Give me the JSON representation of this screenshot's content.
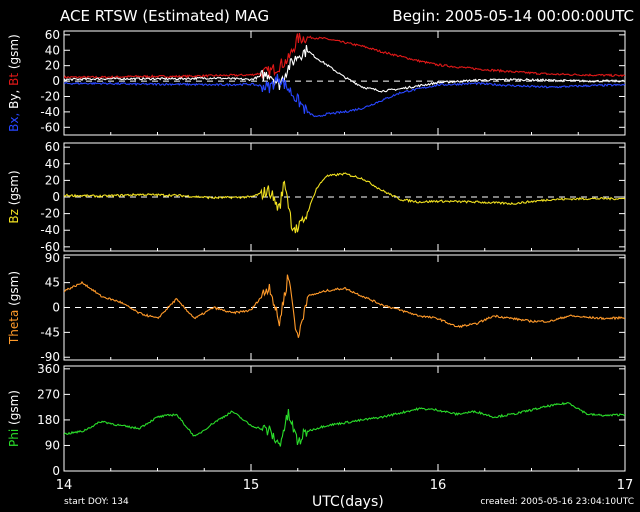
{
  "header": {
    "title": "ACE RTSW (Estimated) MAG",
    "begin": "Begin: 2005-05-14 00:00:00UTC"
  },
  "footer": {
    "start_doy": "start DOY:  134",
    "created": "created: 2005-05-16 23:04:10UTC"
  },
  "colors": {
    "background": "#000000",
    "axes": "#ffffff",
    "bx": "#2846ff",
    "by": "#ffffff",
    "bt": "#e01818",
    "bz": "#f0e020",
    "theta": "#ff9a2a",
    "phi": "#2adc2a"
  },
  "chart_data": {
    "type": "line",
    "xlabel": "UTC(days)",
    "xlim": [
      14,
      17
    ],
    "xticks": [
      14,
      15,
      16,
      17
    ],
    "panels": [
      {
        "id": "b",
        "ylabel_parts": [
          {
            "text": "Bx,",
            "color": "#2846ff"
          },
          {
            "text": " By,",
            "color": "#ffffff"
          },
          {
            "text": " Bt",
            "color": "#e01818"
          },
          {
            "text": " (gsm)",
            "color": "#ffffff"
          }
        ],
        "ylim": [
          -70,
          65
        ],
        "yticks": [
          -60,
          -40,
          -20,
          0,
          20,
          40,
          60
        ],
        "zero_line": true,
        "series": [
          {
            "key": "Bt",
            "color": "#e01818",
            "x": [
              14.0,
              14.2,
              14.4,
              14.6,
              14.8,
              15.0,
              15.1,
              15.15,
              15.2,
              15.25,
              15.3,
              15.4,
              15.5,
              15.6,
              15.7,
              15.8,
              15.9,
              16.0,
              16.2,
              16.4,
              16.6,
              16.8,
              17.0
            ],
            "y": [
              5,
              5,
              6,
              6,
              7,
              8,
              12,
              20,
              28,
              55,
              57,
              55,
              50,
              45,
              38,
              32,
              26,
              21,
              16,
              12,
              9,
              8,
              7
            ]
          },
          {
            "key": "By",
            "color": "#ffffff",
            "x": [
              14.0,
              14.2,
              14.4,
              14.6,
              14.8,
              15.0,
              15.1,
              15.15,
              15.2,
              15.25,
              15.3,
              15.35,
              15.4,
              15.5,
              15.6,
              15.7,
              15.8,
              15.9,
              16.0,
              16.2,
              16.4,
              16.6,
              16.8,
              17.0
            ],
            "y": [
              2,
              3,
              3,
              3,
              4,
              2,
              10,
              -5,
              18,
              33,
              40,
              30,
              22,
              5,
              -8,
              -13,
              -10,
              -6,
              -2,
              1,
              2,
              1,
              0,
              0
            ]
          },
          {
            "key": "Bx",
            "color": "#2846ff",
            "x": [
              14.0,
              14.2,
              14.4,
              14.6,
              14.8,
              15.0,
              15.1,
              15.15,
              15.2,
              15.25,
              15.3,
              15.35,
              15.4,
              15.5,
              15.6,
              15.7,
              15.8,
              15.9,
              16.0,
              16.2,
              16.4,
              16.6,
              16.8,
              17.0
            ],
            "y": [
              -3,
              -3,
              -4,
              -4,
              -5,
              -4,
              -8,
              5,
              -10,
              -25,
              -40,
              -47,
              -43,
              -40,
              -35,
              -25,
              -15,
              -10,
              -5,
              -3,
              -6,
              -8,
              -6,
              -5
            ]
          }
        ]
      },
      {
        "id": "bz",
        "ylabel_parts": [
          {
            "text": "Bz",
            "color": "#f0e020"
          },
          {
            "text": " (gsm)",
            "color": "#ffffff"
          }
        ],
        "ylim": [
          -65,
          65
        ],
        "yticks": [
          -60,
          -40,
          -20,
          0,
          20,
          40,
          60
        ],
        "zero_line": true,
        "series": [
          {
            "key": "Bz",
            "color": "#f0e020",
            "x": [
              14.0,
              14.2,
              14.4,
              14.6,
              14.8,
              15.0,
              15.1,
              15.15,
              15.18,
              15.22,
              15.25,
              15.3,
              15.35,
              15.4,
              15.5,
              15.6,
              15.7,
              15.8,
              15.9,
              16.0,
              16.2,
              16.4,
              16.6,
              16.8,
              17.0
            ],
            "y": [
              2,
              1,
              3,
              2,
              -1,
              0,
              8,
              -15,
              20,
              -35,
              -40,
              -20,
              10,
              25,
              28,
              22,
              8,
              -3,
              -6,
              -5,
              -6,
              -8,
              -3,
              -2,
              -2
            ]
          }
        ]
      },
      {
        "id": "theta",
        "ylabel_parts": [
          {
            "text": "Theta",
            "color": "#ff9a2a"
          },
          {
            "text": " (gsm)",
            "color": "#ffffff"
          }
        ],
        "ylim": [
          -95,
          95
        ],
        "yticks": [
          -90,
          -45,
          0,
          45,
          90
        ],
        "zero_line": true,
        "series": [
          {
            "key": "Theta",
            "color": "#ff9a2a",
            "x": [
              14.0,
              14.1,
              14.2,
              14.3,
              14.4,
              14.5,
              14.6,
              14.7,
              14.8,
              14.9,
              15.0,
              15.1,
              15.15,
              15.2,
              15.25,
              15.3,
              15.4,
              15.5,
              15.6,
              15.7,
              15.8,
              15.9,
              16.0,
              16.1,
              16.2,
              16.3,
              16.4,
              16.5,
              16.6,
              16.7,
              16.8,
              16.9,
              17.0
            ],
            "y": [
              30,
              45,
              20,
              10,
              -10,
              -20,
              15,
              -20,
              0,
              -10,
              -5,
              40,
              -30,
              60,
              -60,
              20,
              30,
              35,
              20,
              5,
              -5,
              -15,
              -20,
              -35,
              -30,
              -15,
              -20,
              -25,
              -25,
              -15,
              -18,
              -20,
              -18
            ]
          }
        ]
      },
      {
        "id": "phi",
        "ylabel_parts": [
          {
            "text": "Phi",
            "color": "#2adc2a"
          },
          {
            "text": " (gsm)",
            "color": "#ffffff"
          }
        ],
        "ylim": [
          0,
          370
        ],
        "yticks": [
          0,
          90,
          180,
          270,
          360
        ],
        "zero_line": false,
        "series": [
          {
            "key": "Phi",
            "color": "#2adc2a",
            "x": [
              14.0,
              14.1,
              14.2,
              14.3,
              14.4,
              14.5,
              14.6,
              14.7,
              14.8,
              14.9,
              15.0,
              15.1,
              15.15,
              15.2,
              15.25,
              15.3,
              15.4,
              15.5,
              15.6,
              15.7,
              15.8,
              15.9,
              16.0,
              16.1,
              16.2,
              16.3,
              16.4,
              16.5,
              16.6,
              16.7,
              16.8,
              16.9,
              17.0
            ],
            "y": [
              130,
              140,
              175,
              160,
              150,
              190,
              200,
              120,
              170,
              210,
              160,
              140,
              90,
              200,
              100,
              140,
              160,
              170,
              180,
              190,
              205,
              220,
              215,
              200,
              210,
              190,
              200,
              215,
              230,
              240,
              200,
              195,
              200
            ]
          }
        ]
      }
    ]
  }
}
